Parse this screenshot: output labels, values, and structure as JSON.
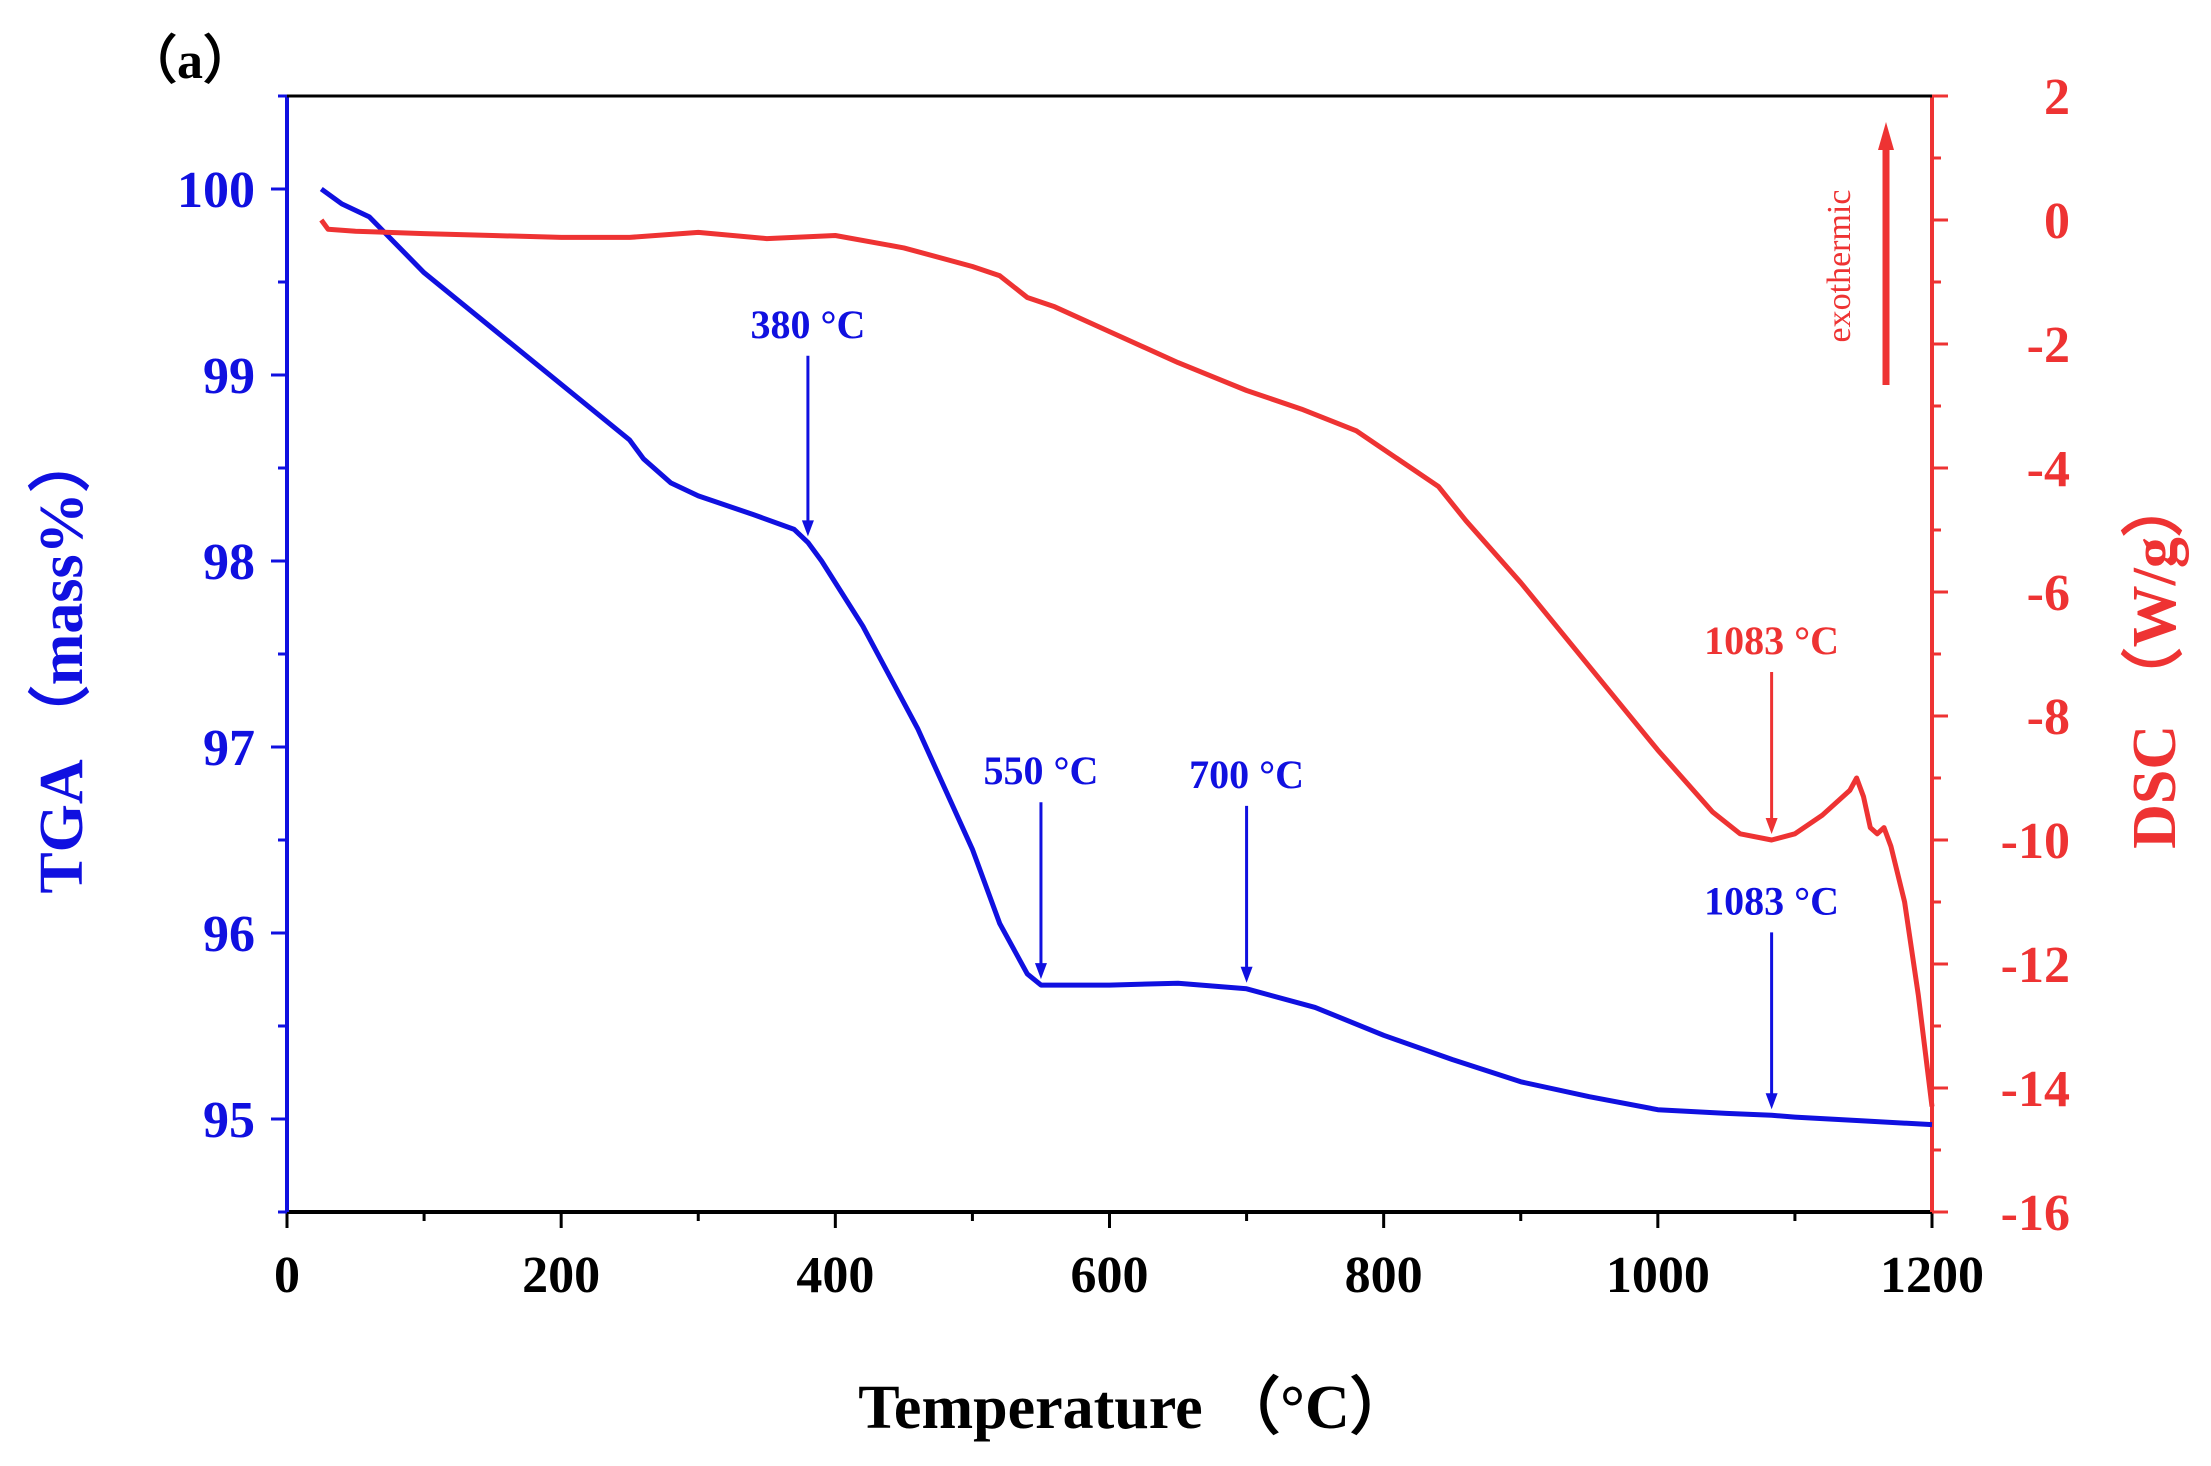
{
  "panel_label": "（a）",
  "colors": {
    "tga": "#1010e0",
    "dsc": "#ee3333",
    "axis": "#000000"
  },
  "chart_data": {
    "type": "line",
    "x": {
      "label": "Temperature （°C）",
      "range": [
        0,
        1200
      ],
      "ticks": [
        0,
        200,
        400,
        600,
        800,
        1000,
        1200
      ]
    },
    "y_left": {
      "label": "TGA （mass%）",
      "range": [
        94.5,
        100.5
      ],
      "ticks": [
        95,
        96,
        97,
        98,
        99,
        100
      ]
    },
    "y_right": {
      "label": "DSC （W/g）",
      "range": [
        -16,
        2
      ],
      "ticks": [
        2,
        0,
        -2,
        -4,
        -6,
        -8,
        -10,
        -12,
        -14,
        -16
      ]
    },
    "series": [
      {
        "name": "TGA",
        "axis": "left",
        "color": "#1010e0",
        "points": [
          [
            25,
            100.0
          ],
          [
            40,
            99.92
          ],
          [
            60,
            99.85
          ],
          [
            100,
            99.55
          ],
          [
            150,
            99.25
          ],
          [
            200,
            98.95
          ],
          [
            250,
            98.65
          ],
          [
            260,
            98.55
          ],
          [
            280,
            98.42
          ],
          [
            300,
            98.35
          ],
          [
            340,
            98.25
          ],
          [
            370,
            98.17
          ],
          [
            380,
            98.1
          ],
          [
            390,
            98.0
          ],
          [
            420,
            97.65
          ],
          [
            460,
            97.1
          ],
          [
            500,
            96.45
          ],
          [
            520,
            96.05
          ],
          [
            540,
            95.78
          ],
          [
            550,
            95.72
          ],
          [
            600,
            95.72
          ],
          [
            650,
            95.73
          ],
          [
            700,
            95.7
          ],
          [
            750,
            95.6
          ],
          [
            800,
            95.45
          ],
          [
            850,
            95.32
          ],
          [
            900,
            95.2
          ],
          [
            950,
            95.12
          ],
          [
            1000,
            95.05
          ],
          [
            1050,
            95.03
          ],
          [
            1083,
            95.02
          ],
          [
            1100,
            95.01
          ],
          [
            1150,
            94.99
          ],
          [
            1200,
            94.97
          ]
        ]
      },
      {
        "name": "DSC",
        "axis": "right",
        "color": "#ee3333",
        "points": [
          [
            25,
            0.0
          ],
          [
            30,
            -0.15
          ],
          [
            50,
            -0.18
          ],
          [
            100,
            -0.22
          ],
          [
            150,
            -0.25
          ],
          [
            200,
            -0.28
          ],
          [
            250,
            -0.28
          ],
          [
            300,
            -0.2
          ],
          [
            350,
            -0.3
          ],
          [
            400,
            -0.25
          ],
          [
            450,
            -0.45
          ],
          [
            500,
            -0.75
          ],
          [
            520,
            -0.9
          ],
          [
            540,
            -1.25
          ],
          [
            560,
            -1.4
          ],
          [
            600,
            -1.8
          ],
          [
            650,
            -2.3
          ],
          [
            700,
            -2.75
          ],
          [
            740,
            -3.05
          ],
          [
            780,
            -3.4
          ],
          [
            800,
            -3.7
          ],
          [
            840,
            -4.3
          ],
          [
            860,
            -4.85
          ],
          [
            900,
            -5.85
          ],
          [
            950,
            -7.2
          ],
          [
            1000,
            -8.55
          ],
          [
            1040,
            -9.55
          ],
          [
            1060,
            -9.9
          ],
          [
            1083,
            -10.0
          ],
          [
            1100,
            -9.9
          ],
          [
            1120,
            -9.6
          ],
          [
            1140,
            -9.2
          ],
          [
            1145,
            -9.0
          ],
          [
            1150,
            -9.3
          ],
          [
            1155,
            -9.8
          ],
          [
            1160,
            -9.9
          ],
          [
            1165,
            -9.8
          ],
          [
            1170,
            -10.1
          ],
          [
            1180,
            -11.0
          ],
          [
            1190,
            -12.5
          ],
          [
            1200,
            -14.3
          ]
        ]
      }
    ],
    "annotations": [
      {
        "text": "380 °C",
        "series": "TGA",
        "x": 380,
        "y": 98.1,
        "label_y": 99.2
      },
      {
        "text": "550 °C",
        "series": "TGA",
        "x": 550,
        "y": 95.72,
        "label_y": 96.8
      },
      {
        "text": "700 °C",
        "series": "TGA",
        "x": 700,
        "y": 95.7,
        "label_y": 96.78
      },
      {
        "text": "1083 °C",
        "series": "TGA",
        "x": 1083,
        "y": 95.02,
        "label_y": 96.1
      },
      {
        "text": "1083 °C",
        "series": "DSC",
        "x": 1083,
        "y": -10.0,
        "label_y": -7.0
      }
    ],
    "side_note": {
      "text": "exothermic",
      "color": "#ee3333"
    }
  }
}
